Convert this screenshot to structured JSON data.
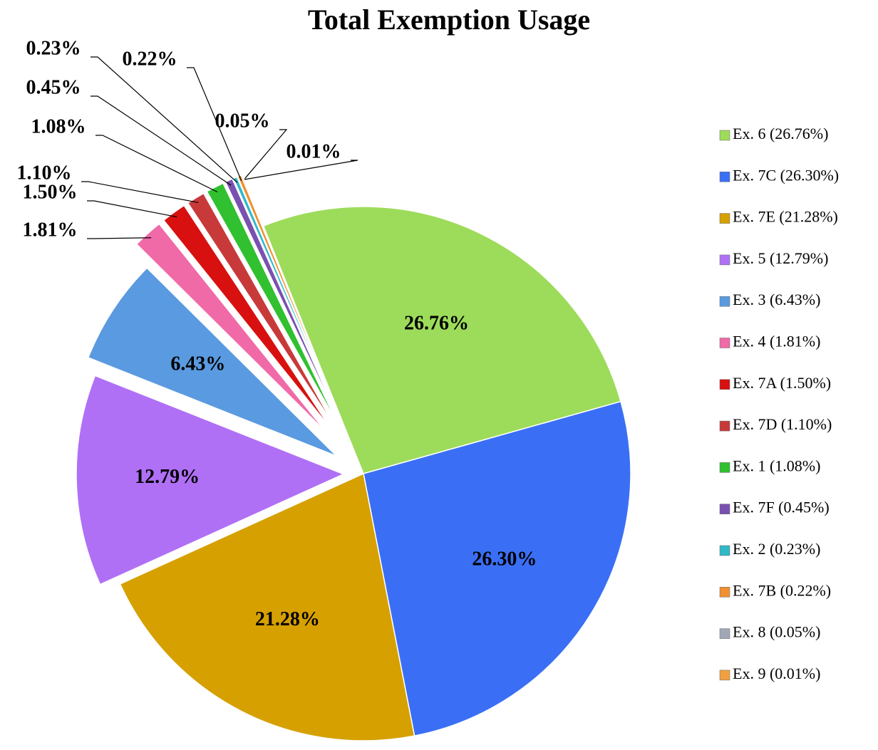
{
  "chart_data": {
    "type": "pie",
    "title": "Total Exemption Usage",
    "categories": [
      "Ex. 6 (26.76%)",
      "Ex. 7C (26.30%)",
      "Ex. 7E (21.28%)",
      "Ex. 5 (12.79%)",
      "Ex. 3 (6.43%)",
      "Ex. 4 (1.81%)",
      "Ex. 7A (1.50%)",
      "Ex. 7D (1.10%)",
      "Ex. 1 (1.08%)",
      "Ex. 7F (0.45%)",
      "Ex. 2 (0.23%)",
      "Ex. 7B (0.22%)",
      "Ex. 8 (0.05%)",
      "Ex. 9 (0.01%)"
    ],
    "values": [
      26.76,
      26.3,
      21.28,
      12.79,
      6.43,
      1.81,
      1.5,
      1.1,
      1.08,
      0.45,
      0.23,
      0.22,
      0.05,
      0.01
    ],
    "value_labels": [
      "26.76%",
      "26.30%",
      "21.28%",
      "12.79%",
      "6.43%",
      "1.81%",
      "1.50%",
      "1.10%",
      "1.08%",
      "0.45%",
      "0.23%",
      "0.22%",
      "0.05%",
      "0.01%"
    ],
    "colors": [
      "#9ddb5a",
      "#3a6ff5",
      "#d6a000",
      "#b070f5",
      "#5a9ae0",
      "#f06aa8",
      "#d81010",
      "#c83a3a",
      "#30c030",
      "#7a50b0",
      "#30b8c8",
      "#f09030",
      "#a0a8b8",
      "#f0a040"
    ],
    "legend": "right"
  }
}
